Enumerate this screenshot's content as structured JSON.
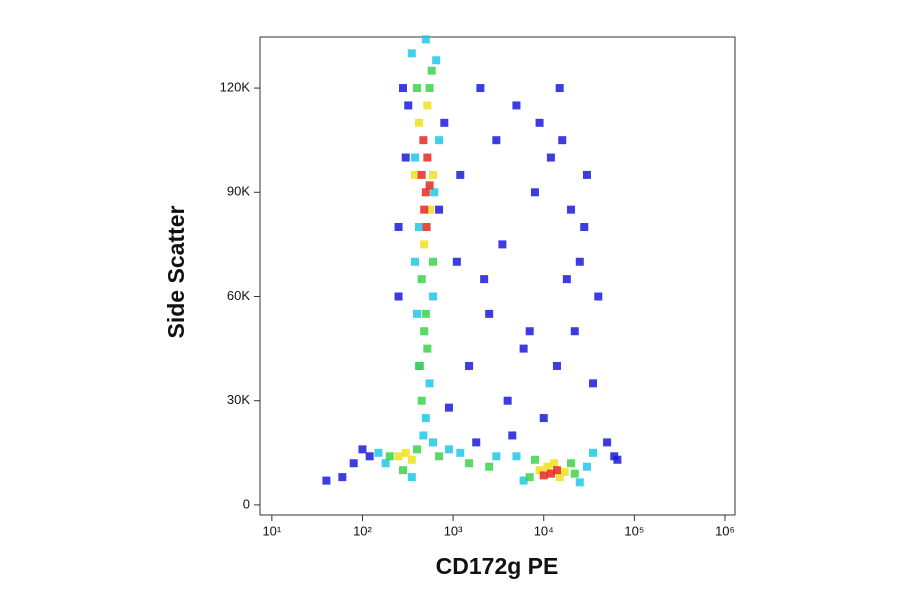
{
  "chart_data": {
    "type": "scatter",
    "x_label": "CD172g PE",
    "y_label": "Side Scatter",
    "xscale": "log",
    "xlim": [
      7.4,
      1290000
    ],
    "xticks": [
      {
        "value": 10,
        "label": "10¹"
      },
      {
        "value": 100,
        "label": "10²"
      },
      {
        "value": 1000,
        "label": "10³"
      },
      {
        "value": 10000,
        "label": "10⁴"
      },
      {
        "value": 100000,
        "label": "10⁵"
      },
      {
        "value": 1000000,
        "label": "10⁶"
      }
    ],
    "ylim": [
      -2900,
      134700
    ],
    "yticks": [
      0,
      {
        "value": 30000,
        "label": "30K"
      },
      {
        "value": 60000,
        "label": "60K"
      },
      {
        "value": 90000,
        "label": "90K"
      },
      {
        "value": 120000,
        "label": "120K"
      }
    ],
    "series": [
      {
        "color": "#1a1adc",
        "x": [
          300,
          250,
          800,
          1200,
          2000,
          3000,
          5000,
          8000,
          12000,
          15000,
          20000,
          25000,
          30000,
          40000,
          60000,
          1500,
          2500,
          4000,
          6000,
          10000,
          18000,
          35000,
          700,
          900,
          1100,
          3500,
          7000,
          9000,
          50000,
          120,
          100,
          80,
          60,
          40,
          250,
          280,
          320,
          1800,
          14000,
          22000,
          4500,
          16000,
          28000,
          2200,
          65000
        ],
        "values": [
          100000,
          80000,
          110000,
          95000,
          120000,
          105000,
          115000,
          90000,
          100000,
          120000,
          85000,
          70000,
          95000,
          60000,
          14000,
          40000,
          55000,
          30000,
          45000,
          25000,
          65000,
          35000,
          85000,
          28000,
          70000,
          75000,
          50000,
          110000,
          18000,
          14000,
          16000,
          12000,
          8000,
          7000,
          60000,
          120000,
          115000,
          18000,
          40000,
          50000,
          20000,
          105000,
          80000,
          65000,
          13000
        ]
      },
      {
        "color": "#1ec8e6",
        "x": [
          350,
          650,
          380,
          700,
          420,
          600,
          400,
          550,
          500,
          150,
          180,
          600,
          350,
          900,
          1200,
          3000,
          5000,
          30000,
          35000,
          6000,
          25000,
          500,
          470,
          420,
          620,
          380
        ],
        "values": [
          130000,
          128000,
          100000,
          105000,
          80000,
          60000,
          55000,
          35000,
          25000,
          15000,
          12000,
          18000,
          8000,
          16000,
          15000,
          14000,
          14000,
          11000,
          15000,
          7000,
          6500,
          134000,
          20000,
          40000,
          90000,
          70000
        ]
      },
      {
        "color": "#3cd24a",
        "x": [
          400,
          550,
          450,
          600,
          480,
          520,
          430,
          580,
          200,
          400,
          280,
          700,
          1500,
          2500,
          8000,
          20000,
          7000,
          22000,
          500,
          450
        ],
        "values": [
          120000,
          120000,
          65000,
          70000,
          50000,
          45000,
          40000,
          125000,
          14000,
          16000,
          10000,
          14000,
          12000,
          11000,
          13000,
          12000,
          8000,
          9000,
          55000,
          30000
        ]
      },
      {
        "color": "#f0e11e",
        "x": [
          420,
          560,
          480,
          600,
          380,
          520,
          300,
          350,
          250,
          11000,
          15000,
          9000,
          13000,
          17000
        ],
        "values": [
          110000,
          85000,
          75000,
          95000,
          95000,
          115000,
          15000,
          13000,
          14000,
          11000,
          8000,
          10000,
          12000,
          9500
        ]
      },
      {
        "color": "#e6281e",
        "x": [
          450,
          500,
          520,
          480,
          550,
          470,
          510,
          12000,
          14000,
          10000
        ],
        "values": [
          95000,
          90000,
          100000,
          85000,
          92000,
          105000,
          80000,
          9000,
          10000,
          8500
        ]
      }
    ]
  }
}
